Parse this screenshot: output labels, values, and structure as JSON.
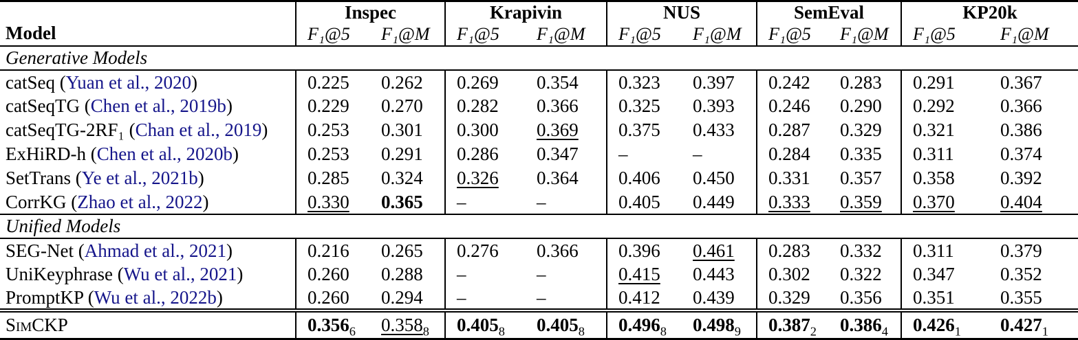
{
  "colors": {
    "citation": "#15158a",
    "text": "#000000",
    "background": "#ffffff"
  },
  "table": {
    "model_header": "Model",
    "datasets": [
      "Inspec",
      "Krapivin",
      "NUS",
      "SemEval",
      "KP20k"
    ],
    "metrics": [
      "F₁@5",
      "F₁@M"
    ],
    "sections": [
      {
        "label": "Generative Models",
        "rows": [
          {
            "model": {
              "name": "catSeq",
              "cite": "Yuan et al., 2020"
            },
            "cells": [
              {
                "v": "0.225"
              },
              {
                "v": "0.262"
              },
              {
                "v": "0.269"
              },
              {
                "v": "0.354"
              },
              {
                "v": "0.323"
              },
              {
                "v": "0.397"
              },
              {
                "v": "0.242"
              },
              {
                "v": "0.283"
              },
              {
                "v": "0.291"
              },
              {
                "v": "0.367"
              }
            ]
          },
          {
            "model": {
              "name": "catSeqTG",
              "cite": "Chen et al., 2019b"
            },
            "cells": [
              {
                "v": "0.229"
              },
              {
                "v": "0.270"
              },
              {
                "v": "0.282"
              },
              {
                "v": "0.366"
              },
              {
                "v": "0.325"
              },
              {
                "v": "0.393"
              },
              {
                "v": "0.246"
              },
              {
                "v": "0.290"
              },
              {
                "v": "0.292"
              },
              {
                "v": "0.366"
              }
            ]
          },
          {
            "model": {
              "name": "catSeqTG-2RF₁",
              "cite": "Chan et al., 2019"
            },
            "cells": [
              {
                "v": "0.253"
              },
              {
                "v": "0.301"
              },
              {
                "v": "0.300"
              },
              {
                "v": "0.369",
                "underline": true
              },
              {
                "v": "0.375"
              },
              {
                "v": "0.433"
              },
              {
                "v": "0.287"
              },
              {
                "v": "0.329"
              },
              {
                "v": "0.321"
              },
              {
                "v": "0.386"
              }
            ]
          },
          {
            "model": {
              "name": "ExHiRD-h",
              "cite": "Chen et al., 2020b"
            },
            "cells": [
              {
                "v": "0.253"
              },
              {
                "v": "0.291"
              },
              {
                "v": "0.286"
              },
              {
                "v": "0.347"
              },
              {
                "v": "–"
              },
              {
                "v": "–"
              },
              {
                "v": "0.284"
              },
              {
                "v": "0.335"
              },
              {
                "v": "0.311"
              },
              {
                "v": "0.374"
              }
            ]
          },
          {
            "model": {
              "name": "SetTrans",
              "cite": "Ye et al., 2021b"
            },
            "cells": [
              {
                "v": "0.285"
              },
              {
                "v": "0.324"
              },
              {
                "v": "0.326",
                "underline": true
              },
              {
                "v": "0.364"
              },
              {
                "v": "0.406"
              },
              {
                "v": "0.450"
              },
              {
                "v": "0.331"
              },
              {
                "v": "0.357"
              },
              {
                "v": "0.358"
              },
              {
                "v": "0.392"
              }
            ]
          },
          {
            "model": {
              "name": "CorrKG",
              "cite": "Zhao et al., 2022"
            },
            "cells": [
              {
                "v": "0.330",
                "underline": true
              },
              {
                "v": "0.365",
                "bold": true
              },
              {
                "v": "–"
              },
              {
                "v": "–"
              },
              {
                "v": "0.405"
              },
              {
                "v": "0.449"
              },
              {
                "v": "0.333",
                "underline": true
              },
              {
                "v": "0.359",
                "underline": true
              },
              {
                "v": "0.370",
                "underline": true
              },
              {
                "v": "0.404",
                "underline": true
              }
            ]
          }
        ]
      },
      {
        "label": "Unified Models",
        "rows": [
          {
            "model": {
              "name": "SEG-Net",
              "cite": "Ahmad et al., 2021"
            },
            "cells": [
              {
                "v": "0.216"
              },
              {
                "v": "0.265"
              },
              {
                "v": "0.276"
              },
              {
                "v": "0.366"
              },
              {
                "v": "0.396"
              },
              {
                "v": "0.461",
                "underline": true
              },
              {
                "v": "0.283"
              },
              {
                "v": "0.332"
              },
              {
                "v": "0.311"
              },
              {
                "v": "0.379"
              }
            ]
          },
          {
            "model": {
              "name": "UniKeyphrase",
              "cite": "Wu et al., 2021"
            },
            "cells": [
              {
                "v": "0.260"
              },
              {
                "v": "0.288"
              },
              {
                "v": "–"
              },
              {
                "v": "–"
              },
              {
                "v": "0.415",
                "underline": true
              },
              {
                "v": "0.443"
              },
              {
                "v": "0.302"
              },
              {
                "v": "0.322"
              },
              {
                "v": "0.347"
              },
              {
                "v": "0.352"
              }
            ]
          },
          {
            "model": {
              "name": "PromptKP",
              "cite": "Wu et al., 2022b"
            },
            "cells": [
              {
                "v": "0.260"
              },
              {
                "v": "0.294"
              },
              {
                "v": "–"
              },
              {
                "v": "–"
              },
              {
                "v": "0.412"
              },
              {
                "v": "0.439"
              },
              {
                "v": "0.329"
              },
              {
                "v": "0.356"
              },
              {
                "v": "0.351"
              },
              {
                "v": "0.355"
              }
            ]
          }
        ]
      }
    ],
    "result_row": {
      "model": {
        "name": "SimCKP",
        "smallcaps": true
      },
      "cells": [
        {
          "v": "0.356",
          "sub": "6",
          "bold": true
        },
        {
          "v": "0.358",
          "sub": "8",
          "underline": true
        },
        {
          "v": "0.405",
          "sub": "8",
          "bold": true
        },
        {
          "v": "0.405",
          "sub": "8",
          "bold": true
        },
        {
          "v": "0.496",
          "sub": "8",
          "bold": true
        },
        {
          "v": "0.498",
          "sub": "9",
          "bold": true
        },
        {
          "v": "0.387",
          "sub": "2",
          "bold": true
        },
        {
          "v": "0.386",
          "sub": "4",
          "bold": true
        },
        {
          "v": "0.426",
          "sub": "1",
          "bold": true
        },
        {
          "v": "0.427",
          "sub": "1",
          "bold": true
        }
      ]
    }
  }
}
